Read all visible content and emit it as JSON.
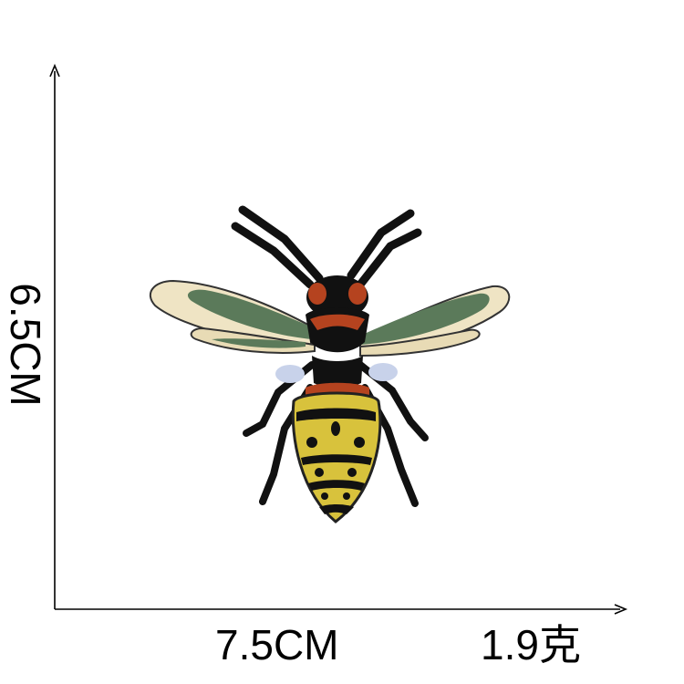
{
  "product_image": {
    "subject": "embroidered hornet patch"
  },
  "dimensions": {
    "height": "6.5CM",
    "width": "7.5CM",
    "weight": "1.9克"
  },
  "colors": {
    "background": "#ffffff",
    "axis": "#000000",
    "wing_green": "#5b7a5a",
    "wing_cream": "#efe4c4",
    "body_black": "#111111",
    "thorax_orange": "#b5431f",
    "abdomen_yellow": "#d8c23c"
  }
}
